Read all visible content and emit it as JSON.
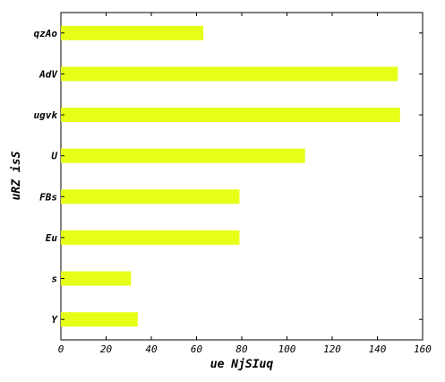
{
  "chart_data": {
    "type": "bar",
    "orientation": "horizontal",
    "categories": [
      "qzAo",
      "AdV",
      "ugvk",
      "U",
      "FBs",
      "Eu",
      "s",
      "Y"
    ],
    "values": [
      63,
      149,
      150,
      108,
      79,
      79,
      31,
      34
    ],
    "title": "",
    "xlabel": "ue NjSIuq",
    "ylabel": "uRZ isS",
    "xlim": [
      0,
      160
    ],
    "xticks": [
      0,
      20,
      40,
      60,
      80,
      100,
      120,
      140,
      160
    ],
    "grid": false,
    "bar_color": "#e5ff16"
  }
}
